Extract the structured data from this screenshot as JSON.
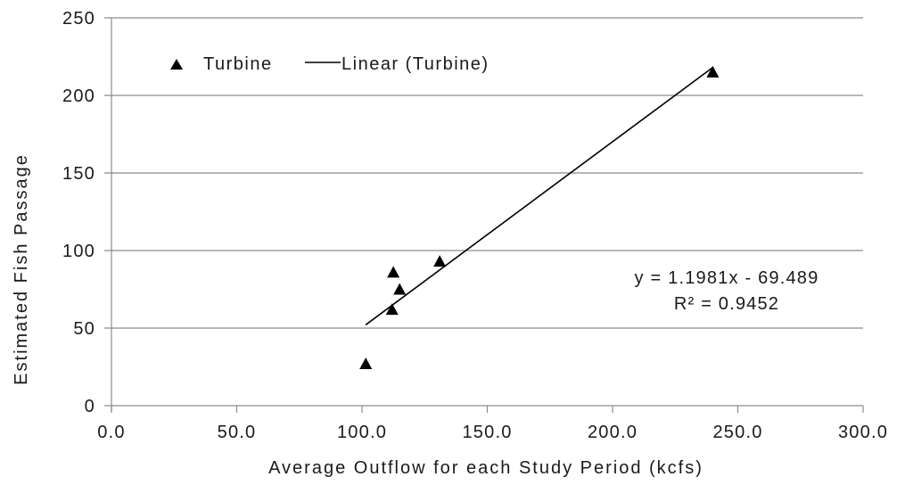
{
  "chart_data": {
    "type": "scatter",
    "xlabel": "Average Outflow for each Study Period (kcfs)",
    "ylabel": "Estimated Fish Passage",
    "xlim": [
      0,
      300
    ],
    "ylim": [
      0,
      250
    ],
    "x_ticks": [
      "0.0",
      "50.0",
      "100.0",
      "150.0",
      "200.0",
      "250.0",
      "300.0"
    ],
    "y_ticks": [
      "0",
      "50",
      "100",
      "150",
      "200",
      "250"
    ],
    "grid": "horizontal",
    "legend_position": "top-left",
    "series": [
      {
        "name": "Turbine",
        "marker": "triangle",
        "color": "#000000",
        "points": [
          {
            "x": 101.5,
            "y": 27
          },
          {
            "x": 112.0,
            "y": 62
          },
          {
            "x": 112.5,
            "y": 86
          },
          {
            "x": 115.0,
            "y": 75
          },
          {
            "x": 131.0,
            "y": 93
          },
          {
            "x": 240.0,
            "y": 215
          }
        ]
      }
    ],
    "trendline": {
      "name": "Linear (Turbine)",
      "type": "linear",
      "slope": 1.1981,
      "intercept": -69.489,
      "x_range": [
        101.5,
        240.0
      ],
      "equation_label": "y = 1.1981x - 69.489",
      "r2_label": "R² = 0.9452"
    }
  }
}
